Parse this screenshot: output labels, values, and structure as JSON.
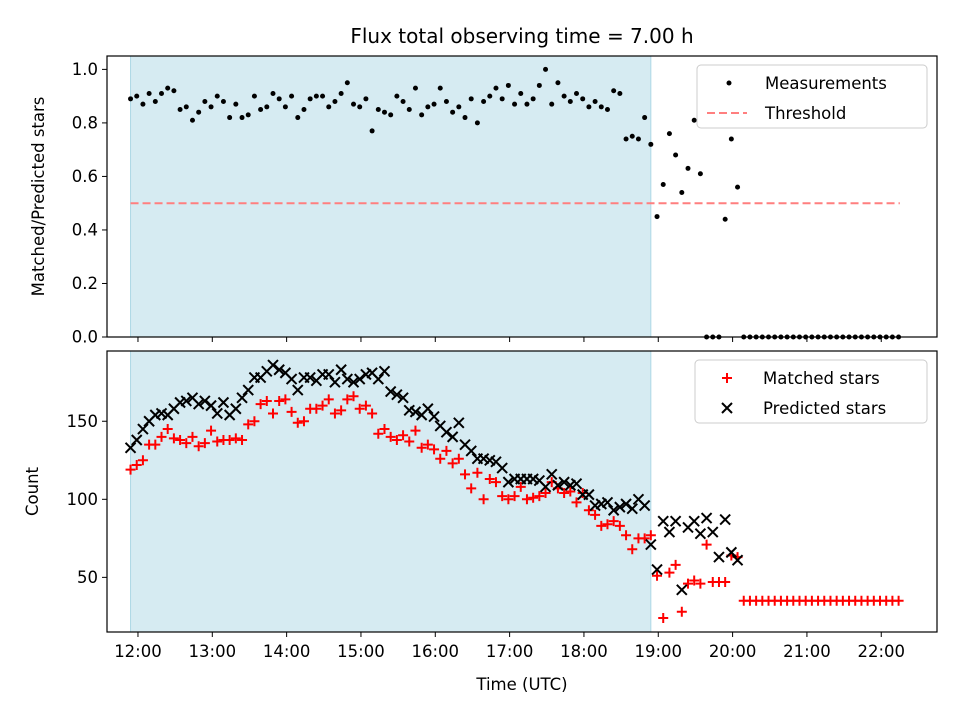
{
  "figure": {
    "title": "Flux total observing time = 7.00 h",
    "xlabel": "Time (UTC)"
  },
  "colors": {
    "shade": "#add8e6",
    "measurement": "#000000",
    "threshold": "#ff7f7f",
    "matched": "#ff0000",
    "predicted": "#000000"
  },
  "chart_data": [
    {
      "type": "scatter",
      "ylabel": "Matched/Predicted stars",
      "xlim": [
        "11:35",
        "22:45"
      ],
      "ylim": [
        0,
        1.05
      ],
      "x_tick_labels": [],
      "y_ticks": [
        0.0,
        0.2,
        0.4,
        0.6,
        0.8,
        1.0
      ],
      "y_tick_labels": [
        "0.0",
        "0.2",
        "0.4",
        "0.6",
        "0.8",
        "1.0"
      ],
      "shaded_interval": [
        "11:54",
        "18:54"
      ],
      "legend": {
        "position": "top-right",
        "entries": [
          {
            "label": "Measurements",
            "marker": "dot"
          },
          {
            "label": "Threshold",
            "marker": "dashed-line"
          }
        ]
      },
      "threshold": {
        "name": "Threshold",
        "value": 0.5,
        "x_range": [
          "11:54",
          "22:15"
        ]
      },
      "series": [
        {
          "name": "Measurements",
          "marker": "dot",
          "x": [
            "11:54",
            "11:59",
            "12:04",
            "12:09",
            "12:14",
            "12:19",
            "12:24",
            "12:29",
            "12:34",
            "12:39",
            "12:44",
            "12:49",
            "12:54",
            "12:59",
            "13:04",
            "13:09",
            "13:14",
            "13:19",
            "13:24",
            "13:29",
            "13:34",
            "13:39",
            "13:44",
            "13:49",
            "13:54",
            "13:59",
            "14:04",
            "14:09",
            "14:14",
            "14:19",
            "14:24",
            "14:29",
            "14:34",
            "14:39",
            "14:44",
            "14:49",
            "14:54",
            "14:59",
            "15:04",
            "15:09",
            "15:14",
            "15:19",
            "15:24",
            "15:29",
            "15:34",
            "15:39",
            "15:44",
            "15:49",
            "15:54",
            "15:59",
            "16:04",
            "16:09",
            "16:14",
            "16:19",
            "16:24",
            "16:29",
            "16:34",
            "16:39",
            "16:44",
            "16:49",
            "16:54",
            "16:59",
            "17:04",
            "17:09",
            "17:14",
            "17:19",
            "17:24",
            "17:29",
            "17:34",
            "17:39",
            "17:44",
            "17:49",
            "17:54",
            "17:59",
            "18:04",
            "18:09",
            "18:14",
            "18:19",
            "18:24",
            "18:29",
            "18:34",
            "18:39",
            "18:44",
            "18:49",
            "18:54",
            "18:59",
            "19:04",
            "19:09",
            "19:14",
            "19:19",
            "19:24",
            "19:29",
            "19:34",
            "19:39",
            "19:44",
            "19:49",
            "19:54",
            "19:59",
            "20:04",
            "20:09",
            "20:14",
            "20:19",
            "20:24",
            "20:29",
            "20:34",
            "20:39",
            "20:44",
            "20:49",
            "20:54",
            "20:59",
            "21:04",
            "21:09",
            "21:14",
            "21:19",
            "21:24",
            "21:29",
            "21:34",
            "21:39",
            "21:44",
            "21:49",
            "21:54",
            "21:59",
            "22:04",
            "22:09",
            "22:14"
          ],
          "y": [
            0.89,
            0.9,
            0.87,
            0.91,
            0.88,
            0.91,
            0.93,
            0.92,
            0.85,
            0.86,
            0.81,
            0.84,
            0.88,
            0.86,
            0.9,
            0.88,
            0.82,
            0.87,
            0.82,
            0.83,
            0.9,
            0.85,
            0.86,
            0.91,
            0.89,
            0.86,
            0.9,
            0.82,
            0.85,
            0.89,
            0.9,
            0.9,
            0.86,
            0.88,
            0.91,
            0.95,
            0.87,
            0.86,
            0.89,
            0.77,
            0.85,
            0.84,
            0.83,
            0.9,
            0.88,
            0.85,
            0.93,
            0.83,
            0.86,
            0.87,
            0.93,
            0.88,
            0.84,
            0.86,
            0.82,
            0.89,
            0.8,
            0.88,
            0.9,
            0.93,
            0.89,
            0.94,
            0.87,
            0.91,
            0.87,
            0.89,
            0.94,
            1.0,
            0.87,
            0.95,
            0.9,
            0.88,
            0.91,
            0.89,
            0.86,
            0.88,
            0.86,
            0.85,
            0.92,
            0.91,
            0.74,
            0.75,
            0.74,
            0.82,
            0.72,
            0.45,
            0.57,
            0.76,
            0.68,
            0.54,
            0.63,
            0.81,
            0.61,
            0.0,
            0.0,
            0.0,
            0.44,
            0.74,
            0.56,
            0.0,
            0.0,
            0.0,
            0.0,
            0.0,
            0.0,
            0.0,
            0.0,
            0.0,
            0.0,
            0.0,
            0.0,
            0.0,
            0.0,
            0.0,
            0.0,
            0.0,
            0.0,
            0.0,
            0.0,
            0.0,
            0.0,
            0.0,
            0.0,
            0.0,
            0.0
          ]
        }
      ]
    },
    {
      "type": "scatter",
      "ylabel": "Count",
      "xlim": [
        "11:35",
        "22:45"
      ],
      "ylim": [
        15,
        195
      ],
      "x_ticks": [
        "12:00",
        "13:00",
        "14:00",
        "15:00",
        "16:00",
        "17:00",
        "18:00",
        "19:00",
        "20:00",
        "21:00",
        "22:00"
      ],
      "x_tick_labels": [
        "12:00",
        "13:00",
        "14:00",
        "15:00",
        "16:00",
        "17:00",
        "18:00",
        "19:00",
        "20:00",
        "21:00",
        "22:00"
      ],
      "y_ticks": [
        50,
        100,
        150
      ],
      "y_tick_labels": [
        "50",
        "100",
        "150"
      ],
      "shaded_interval": [
        "11:54",
        "18:54"
      ],
      "legend": {
        "position": "top-right",
        "entries": [
          {
            "label": "Matched stars",
            "marker": "plus"
          },
          {
            "label": "Predicted stars",
            "marker": "x"
          }
        ]
      },
      "series": [
        {
          "name": "Matched stars",
          "marker": "plus",
          "x": [
            "11:54",
            "11:59",
            "12:04",
            "12:09",
            "12:14",
            "12:19",
            "12:24",
            "12:29",
            "12:34",
            "12:39",
            "12:44",
            "12:49",
            "12:54",
            "12:59",
            "13:04",
            "13:09",
            "13:14",
            "13:19",
            "13:24",
            "13:29",
            "13:34",
            "13:39",
            "13:44",
            "13:49",
            "13:54",
            "13:59",
            "14:04",
            "14:09",
            "14:14",
            "14:19",
            "14:24",
            "14:29",
            "14:34",
            "14:39",
            "14:44",
            "14:49",
            "14:54",
            "14:59",
            "15:04",
            "15:09",
            "15:14",
            "15:19",
            "15:24",
            "15:29",
            "15:34",
            "15:39",
            "15:44",
            "15:49",
            "15:54",
            "15:59",
            "16:04",
            "16:09",
            "16:14",
            "16:19",
            "16:24",
            "16:29",
            "16:34",
            "16:39",
            "16:44",
            "16:49",
            "16:54",
            "16:59",
            "17:04",
            "17:09",
            "17:14",
            "17:19",
            "17:24",
            "17:29",
            "17:34",
            "17:39",
            "17:44",
            "17:49",
            "17:54",
            "17:59",
            "18:04",
            "18:09",
            "18:14",
            "18:19",
            "18:24",
            "18:29",
            "18:34",
            "18:39",
            "18:44",
            "18:49",
            "18:54",
            "18:59",
            "19:04",
            "19:09",
            "19:14",
            "19:19",
            "19:24",
            "19:29",
            "19:34",
            "19:39",
            "19:44",
            "19:49",
            "19:54",
            "19:59",
            "20:04",
            "20:09",
            "20:14",
            "20:19",
            "20:24",
            "20:29",
            "20:34",
            "20:39",
            "20:44",
            "20:49",
            "20:54",
            "20:59",
            "21:04",
            "21:09",
            "21:14",
            "21:19",
            "21:24",
            "21:29",
            "21:34",
            "21:39",
            "21:44",
            "21:49",
            "21:54",
            "21:59",
            "22:04",
            "22:09",
            "22:14"
          ],
          "y": [
            119,
            122,
            125,
            135,
            135,
            140,
            145,
            139,
            138,
            136,
            140,
            134,
            136,
            144,
            137,
            138,
            138,
            139,
            138,
            148,
            150,
            161,
            163,
            155,
            163,
            164,
            156,
            149,
            150,
            158,
            158,
            160,
            164,
            155,
            157,
            164,
            166,
            158,
            160,
            155,
            142,
            145,
            140,
            138,
            141,
            137,
            144,
            133,
            135,
            132,
            126,
            131,
            123,
            126,
            116,
            107,
            117,
            100,
            113,
            111,
            102,
            100,
            102,
            108,
            100,
            101,
            102,
            104,
            111,
            107,
            104,
            105,
            98,
            104,
            93,
            90,
            83,
            84,
            86,
            83,
            77,
            68,
            75,
            75,
            77,
            51,
            24,
            53,
            58,
            28,
            46,
            48,
            46,
            71,
            47,
            47,
            47,
            64,
            63,
            35,
            35,
            35,
            35,
            35,
            35,
            35,
            35,
            35,
            35,
            35,
            35,
            35,
            35,
            35,
            35,
            35,
            35,
            35,
            35,
            35,
            35,
            35,
            35,
            35,
            35
          ]
        },
        {
          "name": "Predicted stars",
          "marker": "x",
          "x": [
            "11:54",
            "11:59",
            "12:04",
            "12:09",
            "12:14",
            "12:19",
            "12:24",
            "12:29",
            "12:34",
            "12:39",
            "12:44",
            "12:49",
            "12:54",
            "12:59",
            "13:04",
            "13:09",
            "13:14",
            "13:19",
            "13:24",
            "13:29",
            "13:34",
            "13:39",
            "13:44",
            "13:49",
            "13:54",
            "13:59",
            "14:04",
            "14:09",
            "14:14",
            "14:19",
            "14:24",
            "14:29",
            "14:34",
            "14:39",
            "14:44",
            "14:49",
            "14:54",
            "14:59",
            "15:04",
            "15:09",
            "15:14",
            "15:19",
            "15:24",
            "15:29",
            "15:34",
            "15:39",
            "15:44",
            "15:49",
            "15:54",
            "15:59",
            "16:04",
            "16:09",
            "16:14",
            "16:19",
            "16:24",
            "16:29",
            "16:34",
            "16:39",
            "16:44",
            "16:49",
            "16:54",
            "16:59",
            "17:04",
            "17:09",
            "17:14",
            "17:19",
            "17:24",
            "17:29",
            "17:34",
            "17:39",
            "17:44",
            "17:49",
            "17:54",
            "17:59",
            "18:04",
            "18:09",
            "18:14",
            "18:19",
            "18:24",
            "18:29",
            "18:34",
            "18:39",
            "18:44",
            "18:49",
            "18:54",
            "18:59",
            "19:04",
            "19:09",
            "19:14",
            "19:19",
            "19:24",
            "19:29",
            "19:34",
            "19:39",
            "19:44",
            "19:49",
            "19:54",
            "19:59",
            "20:04"
          ],
          "y": [
            133,
            138,
            145,
            150,
            154,
            155,
            154,
            158,
            162,
            163,
            165,
            161,
            163,
            160,
            155,
            162,
            154,
            158,
            165,
            170,
            178,
            178,
            182,
            186,
            183,
            181,
            177,
            170,
            178,
            178,
            176,
            180,
            180,
            175,
            183,
            177,
            175,
            177,
            180,
            181,
            177,
            182,
            169,
            167,
            165,
            157,
            156,
            154,
            158,
            153,
            147,
            143,
            140,
            149,
            135,
            131,
            126,
            126,
            125,
            124,
            120,
            111,
            113,
            113,
            113,
            113,
            112,
            108,
            116,
            109,
            111,
            109,
            110,
            103,
            103,
            96,
            97,
            98,
            93,
            95,
            97,
            94,
            100,
            96,
            71,
            55,
            86,
            79,
            86,
            42,
            82,
            86,
            78,
            88,
            79,
            63,
            87,
            66,
            61
          ]
        }
      ]
    }
  ]
}
